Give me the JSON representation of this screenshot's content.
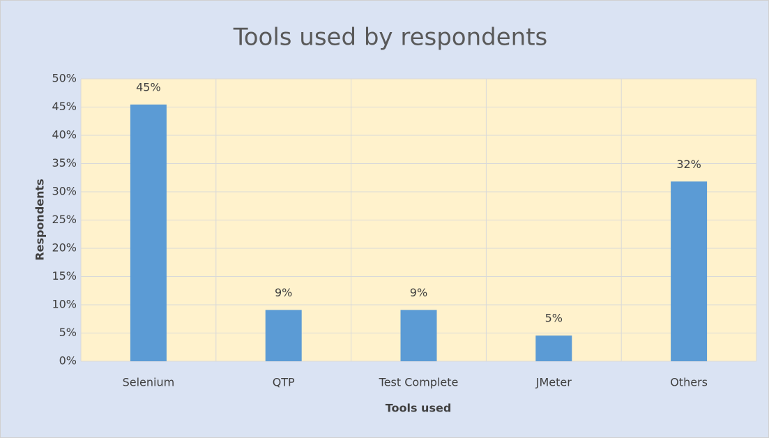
{
  "chart_data": {
    "type": "bar",
    "title": "Tools used by respondents",
    "x_label": "Tools used",
    "y_label": "Respondents",
    "categories": [
      "Selenium",
      "QTP",
      "Test Complete",
      "JMeter",
      "Others"
    ],
    "values": [
      45.45,
      9.09,
      9.09,
      4.55,
      31.82
    ],
    "value_labels": [
      "45%",
      "9%",
      "9%",
      "5%",
      "32%"
    ],
    "color": "#5b9bd5",
    "ylim": [
      0,
      50
    ],
    "yticks": [
      {
        "value": 0,
        "label": "0%"
      },
      {
        "value": 5,
        "label": "5%"
      },
      {
        "value": 10,
        "label": "10%"
      },
      {
        "value": 15,
        "label": "15%"
      },
      {
        "value": 20,
        "label": "20%"
      },
      {
        "value": 25,
        "label": "25%"
      },
      {
        "value": 30,
        "label": "30%"
      },
      {
        "value": 35,
        "label": "35%"
      },
      {
        "value": 40,
        "label": "40%"
      },
      {
        "value": 45,
        "label": "45%"
      },
      {
        "value": 50,
        "label": "50%"
      }
    ],
    "grid": true
  }
}
